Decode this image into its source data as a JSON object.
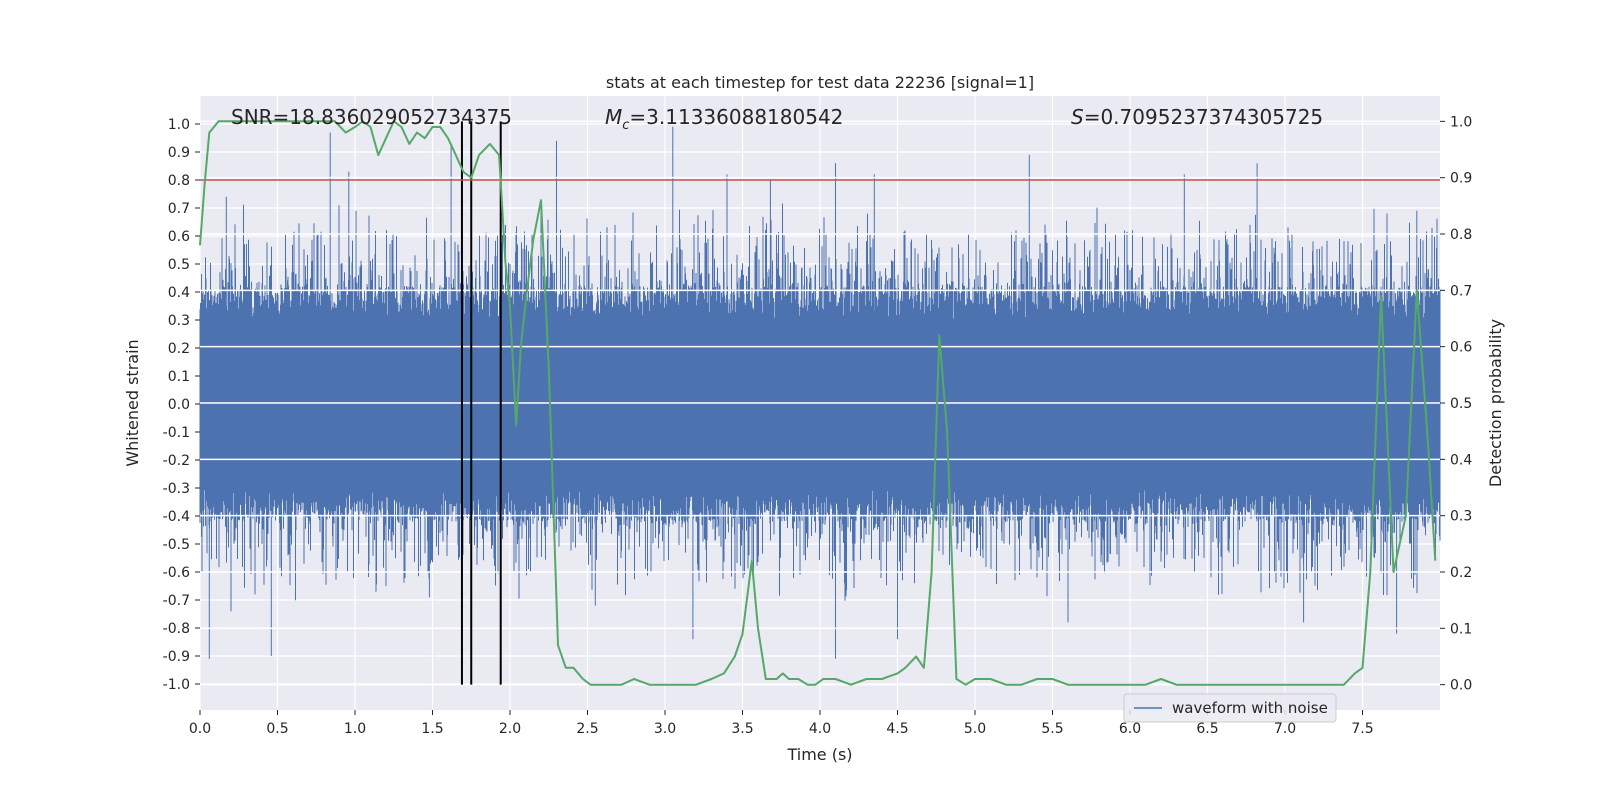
{
  "chart_data": {
    "type": "line",
    "title": "stats at each timestep for test data 22236 [signal=1]",
    "xlabel": "Time (s)",
    "ylabel": "Whitened strain",
    "y2label": "Detection probability",
    "xlim": [
      0,
      8
    ],
    "ylim": [
      -1.0,
      1.0
    ],
    "y2lim": [
      -0.045,
      1.045
    ],
    "xticks": [
      "0.0",
      "0.5",
      "1.0",
      "1.5",
      "2.0",
      "2.5",
      "3.0",
      "3.5",
      "4.0",
      "4.5",
      "5.0",
      "5.5",
      "6.0",
      "6.5",
      "7.0",
      "7.5"
    ],
    "yticks": [
      "-1.0",
      "-0.9",
      "-0.8",
      "-0.7",
      "-0.6",
      "-0.5",
      "-0.4",
      "-0.3",
      "-0.2",
      "-0.1",
      "0.0",
      "0.1",
      "0.2",
      "0.3",
      "0.4",
      "0.5",
      "0.6",
      "0.7",
      "0.8",
      "0.9",
      "1.0"
    ],
    "y2ticks": [
      "0.0",
      "0.1",
      "0.2",
      "0.3",
      "0.4",
      "0.5",
      "0.6",
      "0.7",
      "0.8",
      "0.9",
      "1.0"
    ],
    "annotations": {
      "snr": "SNR=18.836029052734375",
      "mc_symbol": "M",
      "mc_sub": "c",
      "mc_value": "=3.11336088180542",
      "s_symbol": "S",
      "s_value": "=0.7095237374305725"
    },
    "legend": {
      "label": "waveform with noise",
      "location": "lower-right"
    },
    "threshold": 0.8,
    "vlines": [
      1.69,
      1.75,
      1.94
    ],
    "strain_noise_amplitude": 0.42,
    "strain_spikes": [
      {
        "t": 0.06,
        "v": -0.91
      },
      {
        "t": 0.17,
        "v": 0.74
      },
      {
        "t": 0.2,
        "v": -0.74
      },
      {
        "t": 0.46,
        "v": -0.9
      },
      {
        "t": 0.84,
        "v": 0.97
      },
      {
        "t": 0.96,
        "v": 0.83
      },
      {
        "t": 1.2,
        "v": -0.65
      },
      {
        "t": 1.48,
        "v": -0.69
      },
      {
        "t": 1.62,
        "v": 0.93
      },
      {
        "t": 1.75,
        "v": -0.86
      },
      {
        "t": 2.3,
        "v": 0.94
      },
      {
        "t": 2.55,
        "v": -0.72
      },
      {
        "t": 3.05,
        "v": 0.99
      },
      {
        "t": 3.18,
        "v": -0.84
      },
      {
        "t": 3.4,
        "v": 0.82
      },
      {
        "t": 3.68,
        "v": 0.8
      },
      {
        "t": 4.1,
        "v": 0.86
      },
      {
        "t": 4.1,
        "v": -0.91
      },
      {
        "t": 4.35,
        "v": 0.82
      },
      {
        "t": 4.5,
        "v": -0.84
      },
      {
        "t": 5.35,
        "v": 0.89
      },
      {
        "t": 5.6,
        "v": -0.78
      },
      {
        "t": 6.35,
        "v": 0.82
      },
      {
        "t": 6.82,
        "v": 0.86
      },
      {
        "t": 7.12,
        "v": -0.78
      },
      {
        "t": 7.72,
        "v": -0.82
      },
      {
        "t": 7.85,
        "v": 0.69
      }
    ],
    "detection_probability": {
      "x": [
        0.0,
        0.03,
        0.06,
        0.12,
        0.2,
        0.3,
        0.4,
        0.5,
        0.6,
        0.7,
        0.8,
        0.87,
        0.94,
        1.0,
        1.05,
        1.1,
        1.15,
        1.2,
        1.25,
        1.3,
        1.35,
        1.4,
        1.45,
        1.5,
        1.55,
        1.6,
        1.65,
        1.7,
        1.75,
        1.8,
        1.87,
        1.93,
        1.97,
        2.0,
        2.04,
        2.07,
        2.11,
        2.15,
        2.2,
        2.25,
        2.31,
        2.36,
        2.41,
        2.47,
        2.52,
        2.58,
        2.65,
        2.72,
        2.8,
        2.9,
        3.0,
        3.1,
        3.2,
        3.3,
        3.38,
        3.45,
        3.5,
        3.56,
        3.6,
        3.65,
        3.72,
        3.76,
        3.8,
        3.86,
        3.92,
        3.97,
        4.02,
        4.1,
        4.2,
        4.3,
        4.4,
        4.5,
        4.55,
        4.62,
        4.67,
        4.72,
        4.77,
        4.82,
        4.88,
        4.94,
        5.0,
        5.1,
        5.2,
        5.3,
        5.4,
        5.5,
        5.6,
        5.65,
        5.8,
        5.95,
        6.1,
        6.2,
        6.3,
        6.5,
        6.7,
        6.9,
        7.0,
        7.1,
        7.2,
        7.3,
        7.38,
        7.45,
        7.5,
        7.55,
        7.62,
        7.7,
        7.78,
        7.85,
        7.92,
        7.97
      ],
      "y": [
        0.78,
        0.89,
        0.98,
        1.0,
        1.0,
        1.0,
        1.0,
        1.0,
        1.0,
        1.0,
        1.0,
        1.0,
        0.98,
        0.99,
        1.0,
        0.99,
        0.94,
        0.97,
        1.0,
        0.99,
        0.96,
        0.98,
        0.97,
        0.99,
        0.99,
        0.97,
        0.94,
        0.91,
        0.9,
        0.94,
        0.96,
        0.94,
        0.75,
        0.67,
        0.46,
        0.6,
        0.7,
        0.79,
        0.86,
        0.56,
        0.07,
        0.03,
        0.03,
        0.01,
        0.0,
        0.0,
        0.0,
        0.0,
        0.01,
        0.0,
        0.0,
        0.0,
        0.0,
        0.01,
        0.02,
        0.05,
        0.09,
        0.22,
        0.1,
        0.01,
        0.01,
        0.02,
        0.01,
        0.01,
        0.0,
        0.0,
        0.01,
        0.01,
        0.0,
        0.01,
        0.01,
        0.02,
        0.03,
        0.05,
        0.03,
        0.2,
        0.62,
        0.45,
        0.01,
        0.0,
        0.01,
        0.01,
        0.0,
        0.0,
        0.01,
        0.01,
        0.0,
        0.0,
        0.0,
        0.0,
        0.0,
        0.01,
        0.0,
        0.0,
        0.0,
        0.0,
        0.0,
        0.0,
        0.0,
        0.0,
        0.0,
        0.02,
        0.03,
        0.2,
        0.69,
        0.2,
        0.3,
        0.7,
        0.44,
        0.22
      ]
    }
  },
  "colors": {
    "axes_bg": "#eaeaf2",
    "grid": "#ffffff",
    "strain": "#4c72b0",
    "probability": "#55a868",
    "threshold": "#c44e52",
    "vline": "#000000",
    "text": "#262626"
  }
}
